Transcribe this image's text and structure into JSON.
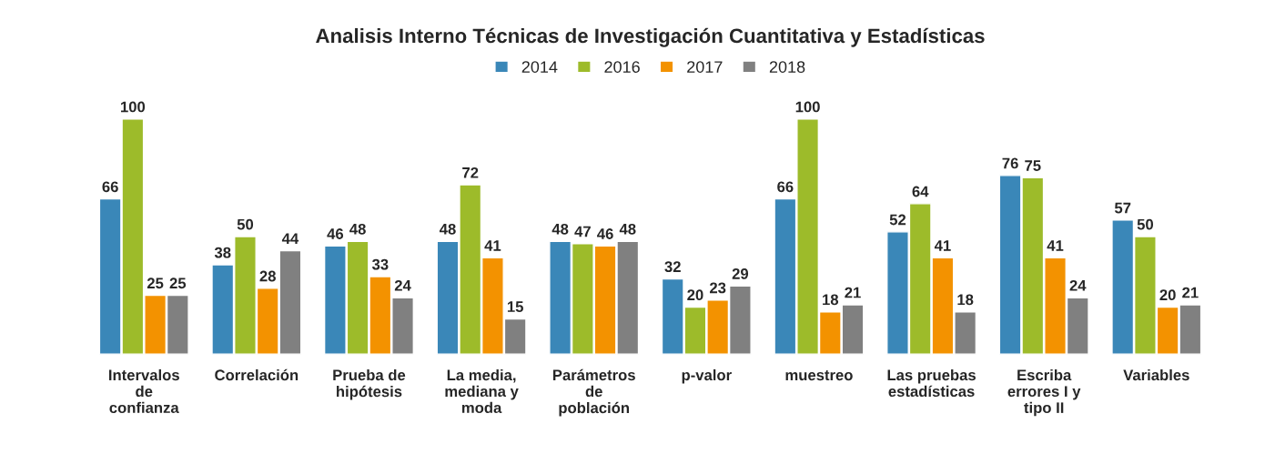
{
  "chart_data": {
    "type": "bar",
    "title": "Analisis Interno Técnicas de Investigación Cuantitativa y Estadísticas",
    "categories": [
      "Intervalos\nde\nconfianza",
      "Correlación",
      "Prueba de\nhipótesis",
      "La media,\nmediana y\nmoda",
      "Parámetros\nde\npoblación",
      "p-valor",
      "muestreo",
      "Las pruebas\nestadísticas",
      "Escriba\nerrores I y\ntipo II",
      "Variables"
    ],
    "series": [
      {
        "name": "2014",
        "color": "#3a87b8",
        "values": [
          66,
          38,
          46,
          48,
          48,
          32,
          66,
          52,
          76,
          57
        ]
      },
      {
        "name": "2016",
        "color": "#9dbb2a",
        "values": [
          100,
          50,
          48,
          72,
          47,
          20,
          100,
          64,
          75,
          50
        ]
      },
      {
        "name": "2017",
        "color": "#f39200",
        "values": [
          25,
          28,
          33,
          41,
          46,
          23,
          18,
          41,
          41,
          20
        ]
      },
      {
        "name": "2018",
        "color": "#808080",
        "values": [
          25,
          44,
          24,
          15,
          48,
          29,
          21,
          18,
          24,
          21
        ]
      }
    ],
    "data_labels": true,
    "legend": "top",
    "grid": false
  }
}
